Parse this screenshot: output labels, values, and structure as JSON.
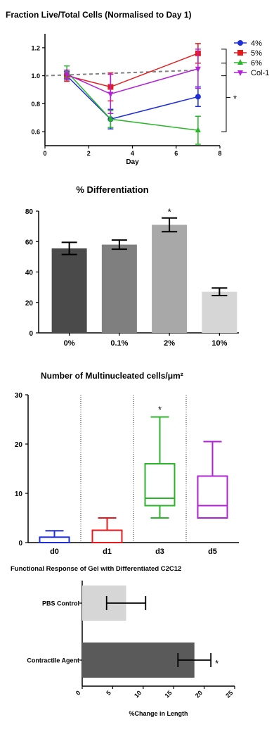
{
  "chart_data": [
    {
      "type": "line",
      "title": "Fraction Live/Total Cells (Normalised to Day 1)",
      "xlabel": "Day",
      "ylabel": "",
      "xlim": [
        0,
        8
      ],
      "ylim": [
        0.5,
        1.3
      ],
      "x_ticks": [
        "0",
        "2",
        "4",
        "6",
        "8"
      ],
      "y_ticks": [
        "0.6",
        "0.8",
        "1.0",
        "1.2"
      ],
      "x": [
        1,
        3,
        7
      ],
      "series": [
        {
          "name": "4%",
          "color": "#1f2fd6",
          "marker": "circle",
          "values": [
            1.0,
            0.69,
            0.85
          ],
          "errors": [
            0.03,
            0.07,
            0.07
          ]
        },
        {
          "name": "5%",
          "color": "#e41a1c",
          "marker": "square",
          "values": [
            1.0,
            0.92,
            1.16
          ],
          "errors": [
            0.04,
            0.1,
            0.07
          ]
        },
        {
          "name": "6%",
          "color": "#2ab52a",
          "marker": "triangle-up",
          "values": [
            1.03,
            0.69,
            0.61
          ],
          "errors": [
            0.04,
            0.06,
            0.1
          ]
        },
        {
          "name": "Col-1",
          "color": "#b321d6",
          "marker": "triangle-down",
          "values": [
            1.01,
            0.87,
            1.05
          ],
          "errors": [
            0.03,
            0.14,
            0.14
          ]
        }
      ],
      "reference_line": {
        "style": "dashed",
        "color": "#808080",
        "x": [
          0,
          7
        ],
        "y": [
          1.0,
          1.04
        ]
      },
      "annotations": [
        "*"
      ],
      "legend_position": "right"
    },
    {
      "type": "bar",
      "title": "% Differentiation",
      "categories": [
        "0%",
        "0.1%",
        "2%",
        "10%"
      ],
      "values": [
        55.5,
        58,
        71,
        27
      ],
      "errors": [
        4,
        3,
        4.5,
        2.5
      ],
      "colors": [
        "#4a4a4a",
        "#7f7f7f",
        "#a8a8a8",
        "#d6d6d6"
      ],
      "ylim": [
        0,
        80
      ],
      "y_ticks": [
        "0",
        "20",
        "40",
        "60",
        "80"
      ],
      "annotations": [
        "*"
      ]
    },
    {
      "type": "box",
      "title": "Number of Multinucleated cells/μm²",
      "categories": [
        "d0",
        "d1",
        "d3",
        "d5"
      ],
      "boxes": [
        {
          "label": "d0",
          "color": "#1f2fd6",
          "min": 0,
          "q1": 0,
          "median": 0,
          "q3": 1.1,
          "max": 2.4
        },
        {
          "label": "d1",
          "color": "#e41a1c",
          "min": 0,
          "q1": 0,
          "median": 0,
          "q3": 2.5,
          "max": 5
        },
        {
          "label": "d3",
          "color": "#2ab52a",
          "min": 5,
          "q1": 7.5,
          "median": 9,
          "q3": 16,
          "max": 25.5
        },
        {
          "label": "d5",
          "color": "#b321d6",
          "min": 5,
          "q1": 5,
          "median": 7.5,
          "q3": 13.5,
          "max": 20.5
        }
      ],
      "ylim": [
        0,
        30
      ],
      "y_ticks": [
        "0",
        "10",
        "20",
        "30"
      ],
      "annotations": [
        "*"
      ]
    },
    {
      "type": "bar",
      "orientation": "horizontal",
      "title": "Functional Response of Gel with Differentiated C2C12",
      "xlabel": "%Change in Length",
      "categories": [
        "PBS Control",
        "Contractile Agent"
      ],
      "values": [
        7.2,
        18.4
      ],
      "errors": [
        3.2,
        2.7
      ],
      "colors": [
        "#d6d6d6",
        "#5a5a5a"
      ],
      "xlim": [
        0,
        25
      ],
      "x_ticks": [
        "0",
        "5",
        "10",
        "15",
        "20",
        "25"
      ],
      "annotations": [
        "*"
      ]
    }
  ]
}
